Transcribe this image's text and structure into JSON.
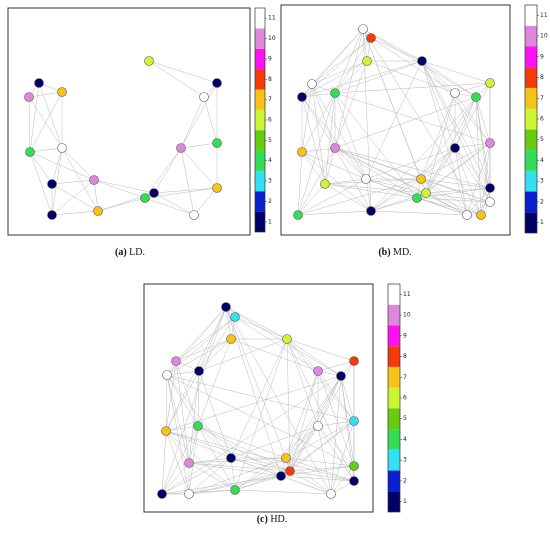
{
  "figure": {
    "colorbar": {
      "ticks": [
        1,
        2,
        3,
        4,
        5,
        6,
        7,
        8,
        9,
        10,
        11
      ],
      "colors": [
        "#000066",
        "#0a1fcf",
        "#33e0f0",
        "#33dd55",
        "#66cc11",
        "#ccf533",
        "#f7c21a",
        "#f23a0a",
        "#ff10f0",
        "#dd88dd",
        "#ffffff"
      ]
    },
    "panels": [
      {
        "label": "(a)",
        "caption": "LD.",
        "node_values": [
          6,
          1,
          1,
          7,
          10,
          11,
          10,
          4,
          11,
          4,
          10,
          1,
          1,
          4,
          7,
          7,
          11,
          1
        ]
      },
      {
        "label": "(b)",
        "caption": "MD.",
        "node_values": [
          11,
          8,
          6,
          1,
          11,
          1,
          4,
          6,
          11,
          4,
          10,
          1,
          10,
          7,
          11,
          7,
          6,
          1,
          6,
          4,
          11,
          1,
          4,
          11,
          7
        ]
      },
      {
        "label": "(c)",
        "caption": "HD.",
        "node_values": [
          1,
          3,
          7,
          6,
          10,
          8,
          11,
          1,
          10,
          1,
          3,
          11,
          7,
          4,
          1,
          7,
          10,
          8,
          1,
          5,
          1,
          1,
          11,
          4,
          11
        ]
      }
    ]
  }
}
